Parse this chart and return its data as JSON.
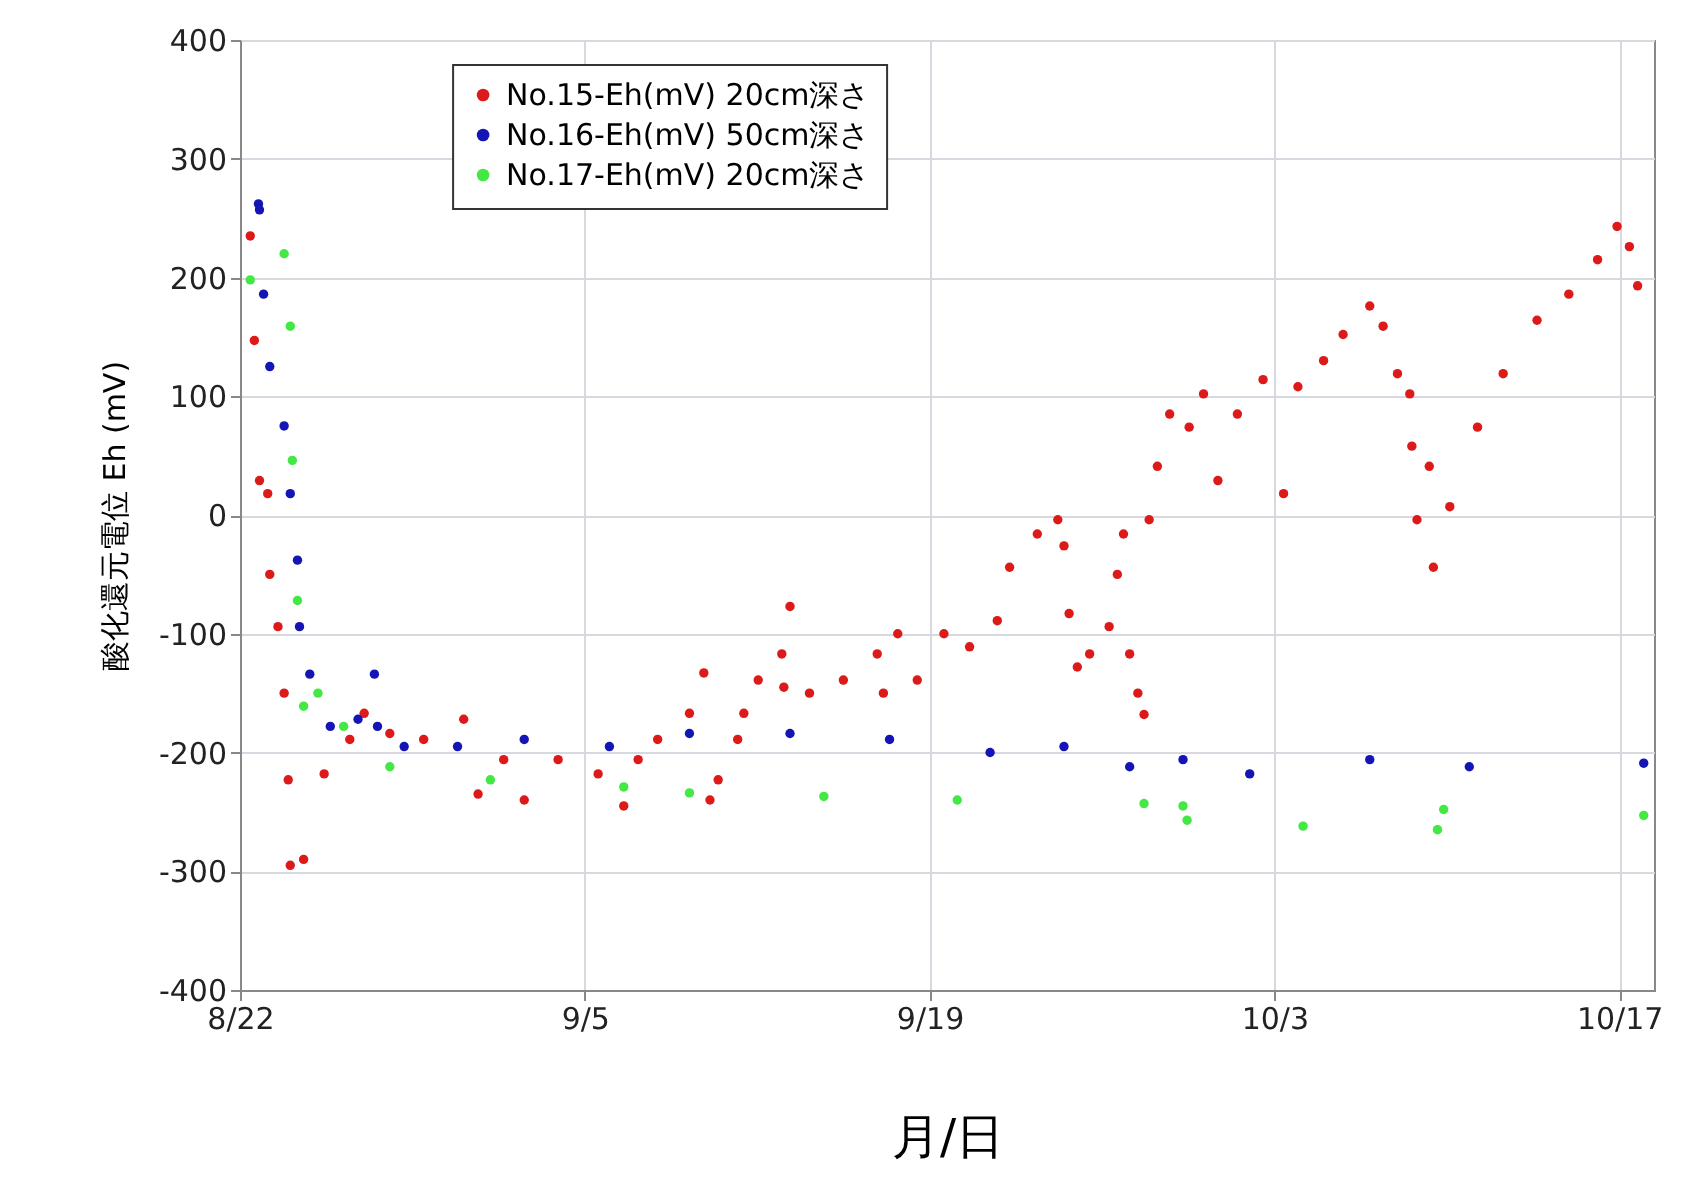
{
  "chart_data": {
    "type": "scatter",
    "xlabel": "月/日",
    "ylabel": "酸化還元電位 Eh (mV)",
    "xlim": [
      "--08-22",
      "--10-18T10:00"
    ],
    "ylim": [
      -400,
      400
    ],
    "xticks": [
      {
        "value": "--08-22",
        "label": "8/22"
      },
      {
        "value": "--09-05",
        "label": "9/5"
      },
      {
        "value": "--09-19",
        "label": "9/19"
      },
      {
        "value": "--10-03",
        "label": "10/3"
      },
      {
        "value": "--10-17",
        "label": "10/17"
      }
    ],
    "yticks": [
      -400,
      -300,
      -200,
      -100,
      0,
      100,
      200,
      300,
      400
    ],
    "grid": true,
    "legend": "top",
    "marker": "circle",
    "series": [
      {
        "name": "No.15-Eh(mV) 20cm深さ",
        "color": "#dd1a1a",
        "x": [
          "--08-22T10:00",
          "--08-22T14:00",
          "--08-22T19:00",
          "--08-23T03:00",
          "--08-23T05:00",
          "--08-23T13:00",
          "--08-23T19:00",
          "--08-23T23:00",
          "--08-24T01:00",
          "--08-24T14:00",
          "--08-25T10:00",
          "--08-26T11:00",
          "--08-27T01:00",
          "--08-28T02:00",
          "--08-29T11:00",
          "--08-31T02:00",
          "--08-31T16:00",
          "--09-01T17:00",
          "--09-02T13:00",
          "--09-03T22:00",
          "--09-05T13:00",
          "--09-06T14:00",
          "--09-07T04:00",
          "--09-07T23:00",
          "--09-09T06:00",
          "--09-09T20:00",
          "--09-10T02:00",
          "--09-10T10:00",
          "--09-11T05:00",
          "--09-11T11:00",
          "--09-12T01:00",
          "--09-13T00:00",
          "--09-13T02:00",
          "--09-13T08:00",
          "--09-14T03:00",
          "--09-15T12:00",
          "--09-16T21:00",
          "--09-17T03:00",
          "--09-17T17:00",
          "--09-18T12:00",
          "--09-19T14:00",
          "--09-20T15:00",
          "--09-21T18:00",
          "--09-22T06:00",
          "--09-23T09:00",
          "--09-24T05:00",
          "--09-24T11:00",
          "--09-24T16:00",
          "--09-25T00:00",
          "--09-25T12:00",
          "--09-26T07:00",
          "--09-26T15:00",
          "--09-26T21:00",
          "--09-27T03:00",
          "--09-27T11:00",
          "--09-27T17:00",
          "--09-27T22:00",
          "--09-28T06:00",
          "--09-28T18:00",
          "--09-29T13:00",
          "--09-30T03:00",
          "--09-30T17:00",
          "--10-01T12:00",
          "--10-02T13:00",
          "--10-03T09:00",
          "--10-03T23:00",
          "--10-05T00:00",
          "--10-05T19:00",
          "--10-06T21:00",
          "--10-07T10:00",
          "--10-08T00:00",
          "--10-08T12:00",
          "--10-08T14:00",
          "--10-08T19:00",
          "--10-09T07:00",
          "--10-09T11:00",
          "--10-10T03:00",
          "--10-11T06:00",
          "--10-12T07:00",
          "--10-13T16:00",
          "--10-14T23:00",
          "--10-16T03:00",
          "--10-16T22:00",
          "--10-17T10:00",
          "--10-17T18:00"
        ],
        "values": [
          235,
          147,
          29,
          18,
          -50,
          -94,
          -150,
          -223,
          -295,
          -290,
          -218,
          -189,
          -167,
          -184,
          -189,
          -172,
          -235,
          -206,
          -240,
          -206,
          -218,
          -245,
          -206,
          -189,
          -167,
          -133,
          -240,
          -223,
          -189,
          -167,
          -139,
          -117,
          -145,
          -77,
          -150,
          -139,
          -117,
          -150,
          -100,
          -139,
          -100,
          -111,
          -89,
          -44,
          -16,
          -4,
          -26,
          -83,
          -128,
          -117,
          -94,
          -50,
          -16,
          -117,
          -150,
          -168,
          -4,
          41,
          85,
          74,
          102,
          29,
          85,
          114,
          18,
          108,
          130,
          152,
          176,
          159,
          119,
          102,
          58,
          -4,
          41,
          -44,
          7,
          74,
          119,
          164,
          186,
          215,
          243,
          226,
          193
        ]
      },
      {
        "name": "No.16-Eh(mV) 50cm深さ",
        "color": "#1515b5",
        "x": [
          "--08-22T18:00",
          "--08-22T19:00",
          "--08-22T23:00",
          "--08-23T05:00",
          "--08-23T19:00",
          "--08-24T01:00",
          "--08-24T08:00",
          "--08-24T10:00",
          "--08-24T20:00",
          "--08-25T16:00",
          "--08-26T19:00",
          "--08-27T11:00",
          "--08-27T14:00",
          "--08-28T16:00",
          "--08-30T20:00",
          "--09-02T13:00",
          "--09-06T00:00",
          "--09-09T06:00",
          "--09-13T08:00",
          "--09-17T09:00",
          "--09-21T11:00",
          "--09-24T11:00",
          "--09-27T03:00",
          "--09-29T07:00",
          "--10-02T00:00",
          "--10-06T21:00",
          "--10-10T22:00",
          "--10-18T00:00"
        ],
        "values": [
          262,
          257,
          186,
          125,
          75,
          18,
          -38,
          -94,
          -134,
          -178,
          -172,
          -134,
          -178,
          -195,
          -195,
          -189,
          -195,
          -184,
          -184,
          -189,
          -200,
          -195,
          -212,
          -206,
          -218,
          -206,
          -212,
          -209
        ]
      },
      {
        "name": "No.17-Eh(mV) 20cm深さ",
        "color": "#44e844",
        "x": [
          "--08-22T10:00",
          "--08-23T19:00",
          "--08-24T01:00",
          "--08-24T03:00",
          "--08-24T08:00",
          "--08-24T14:00",
          "--08-25T04:00",
          "--08-26T05:00",
          "--08-28T02:00",
          "--09-01T04:00",
          "--09-06T14:00",
          "--09-09T06:00",
          "--09-14T17:00",
          "--09-20T03:00",
          "--09-27T17:00",
          "--09-29T07:00",
          "--09-29T11:00",
          "--10-04T04:00",
          "--10-09T15:00",
          "--10-09T21:00",
          "--10-18T00:00"
        ],
        "values": [
          198,
          220,
          159,
          46,
          -72,
          -161,
          -150,
          -178,
          -212,
          -223,
          -229,
          -234,
          -237,
          -240,
          -243,
          -245,
          -257,
          -262,
          -265,
          -248,
          -253
        ]
      }
    ]
  }
}
